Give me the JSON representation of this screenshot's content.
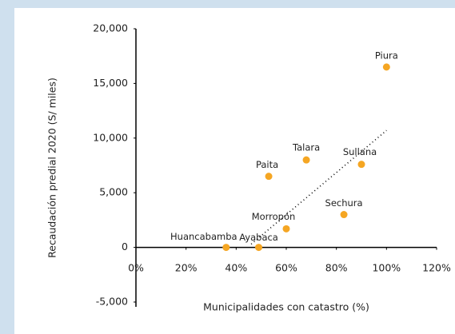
{
  "chart_data": {
    "type": "scatter",
    "x_label": "Municipalidades con catastro (%)",
    "y_label": "Recaudación predial 2020 (S/ miles)",
    "color": "#f5a623",
    "series": [
      {
        "labels": [
          "Piura",
          "Sullana",
          "Talara",
          "Paita",
          "Sechura",
          "Morropón",
          "Ayabaca",
          "Huancabamba"
        ],
        "x": [
          100,
          90,
          68,
          53,
          83,
          60,
          49,
          36
        ],
        "values": [
          16500,
          7600,
          8000,
          6500,
          3000,
          1700,
          0,
          0
        ]
      }
    ],
    "trendline": {
      "x": [
        46,
        100
      ],
      "values": [
        300,
        10700
      ]
    },
    "xlim": [
      0,
      120
    ],
    "xticks": [
      {
        "value": 0,
        "label": "0%"
      },
      {
        "value": 20,
        "label": "20%"
      },
      {
        "value": 40,
        "label": "40%"
      },
      {
        "value": 60,
        "label": "60%"
      },
      {
        "value": 80,
        "label": "80%"
      },
      {
        "value": 100,
        "label": "100%"
      },
      {
        "value": 120,
        "label": "120%"
      }
    ],
    "ylim": [
      -5000,
      20000
    ],
    "yticks": [
      {
        "value": -5000,
        "label": "-5,000"
      },
      0,
      {
        "value": 5000,
        "label": "5,000"
      },
      {
        "value": 10000,
        "label": "10,000"
      },
      {
        "value": 15000,
        "label": "15,000"
      },
      {
        "value": 20000,
        "label": "20,000"
      }
    ]
  }
}
